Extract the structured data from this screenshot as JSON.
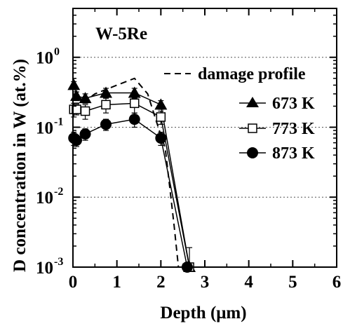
{
  "chart_data": {
    "type": "line",
    "title": "W-5Re",
    "xlabel": "Depth (μm)",
    "ylabel": "D concentration in W (at.%)",
    "xlim": [
      0,
      6
    ],
    "ylim": [
      0.001,
      5
    ],
    "yscale": "log",
    "x_ticks": [
      "0",
      "1",
      "2",
      "3",
      "4",
      "5",
      "6"
    ],
    "y_ticks": [
      {
        "base": "10",
        "exp": "-3",
        "value": 0.001
      },
      {
        "base": "10",
        "exp": "-2",
        "value": 0.01
      },
      {
        "base": "10",
        "exp": "-1",
        "value": 0.1
      },
      {
        "base": "10",
        "exp": "0",
        "value": 1
      }
    ],
    "grid": "horizontal dotted at 10^-2, 10^-1, 10^0",
    "legend_position": "top-right",
    "damage_profile": {
      "name": "damage profile",
      "style": "dashed",
      "x": [
        0,
        0.2,
        0.5,
        1.0,
        1.4,
        1.7,
        1.9,
        2.1,
        2.3,
        2.4
      ],
      "y": [
        0.22,
        0.22,
        0.3,
        0.4,
        0.5,
        0.3,
        0.12,
        0.05,
        0.004,
        0.001
      ]
    },
    "series": [
      {
        "name": "673 K",
        "marker": "triangle",
        "x": [
          0.02,
          0.08,
          0.28,
          0.75,
          1.4,
          2.0,
          2.65
        ],
        "y": [
          0.4,
          0.28,
          0.26,
          0.31,
          0.31,
          0.21,
          0.001
        ],
        "err": [
          0.05,
          0.04,
          0.04,
          0.05,
          0.05,
          0.03,
          0.0
        ]
      },
      {
        "name": "773 K",
        "marker": "square-open",
        "x": [
          0.02,
          0.08,
          0.28,
          0.75,
          1.4,
          2.0,
          2.65
        ],
        "y": [
          0.18,
          0.18,
          0.17,
          0.21,
          0.22,
          0.14,
          0.001
        ],
        "err": [
          0.04,
          0.03,
          0.04,
          0.05,
          0.06,
          0.03,
          0.0009
        ]
      },
      {
        "name": "873 K",
        "marker": "circle",
        "x": [
          0.02,
          0.08,
          0.28,
          0.75,
          1.4,
          2.0,
          2.6
        ],
        "y": [
          0.07,
          0.065,
          0.08,
          0.11,
          0.13,
          0.07,
          0.001
        ],
        "err": [
          0.015,
          0.012,
          0.015,
          0.02,
          0.03,
          0.015,
          0.0
        ]
      }
    ]
  }
}
